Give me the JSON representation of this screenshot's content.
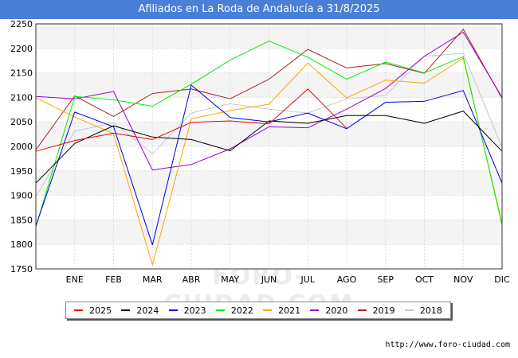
{
  "header": {
    "title": "Afiliados en La Roda de Andalucía a 31/8/2025"
  },
  "footer": {
    "url": "http://www.foro-ciudad.com"
  },
  "watermark": {
    "text": "FORO-CIUDAD.COM"
  },
  "chart_data": {
    "type": "line",
    "title": "Afiliados en La Roda de Andalucía a 31/8/2025",
    "xlabel": "",
    "ylabel": "",
    "categories": [
      "",
      "ENE",
      "FEB",
      "MAR",
      "ABR",
      "MAY",
      "JUN",
      "JUL",
      "AGO",
      "SEP",
      "OCT",
      "NOV",
      "DIC"
    ],
    "ylim": [
      1750,
      2250
    ],
    "yticks": [
      1750,
      1800,
      1850,
      1900,
      1950,
      2000,
      2050,
      2100,
      2150,
      2200,
      2250
    ],
    "grid": true,
    "legend_position": "bottom",
    "series": [
      {
        "name": "2025",
        "color": "#ee0000",
        "values": [
          1990,
          2012,
          2027,
          2014,
          2049,
          2052,
          2046,
          2117,
          2037,
          null,
          null,
          null,
          null
        ]
      },
      {
        "name": "2024",
        "color": "#000000",
        "values": [
          1925,
          2006,
          2042,
          2019,
          2014,
          1991,
          2052,
          2047,
          2063,
          2063,
          2047,
          2072,
          1990
        ]
      },
      {
        "name": "2023",
        "color": "#0000dd",
        "values": [
          1838,
          2070,
          2040,
          1799,
          2125,
          2059,
          2050,
          2068,
          2036,
          2090,
          2092,
          2114,
          1925
        ]
      },
      {
        "name": "2022",
        "color": "#00ee00",
        "values": [
          1836,
          2102,
          2095,
          2082,
          2127,
          2176,
          2215,
          2182,
          2137,
          2172,
          2150,
          2183,
          1839
        ]
      },
      {
        "name": "2021",
        "color": "#ffa500",
        "values": [
          2099,
          2060,
          2026,
          1758,
          2056,
          2073,
          2086,
          2170,
          2099,
          2135,
          2129,
          2180,
          1843
        ]
      },
      {
        "name": "2020",
        "color": "#9900cc",
        "values": [
          2102,
          2097,
          2112,
          1952,
          1963,
          1995,
          2040,
          2038,
          2076,
          2118,
          2184,
          2233,
          2100
        ]
      },
      {
        "name": "2019",
        "color": "#aa2222",
        "values": [
          1993,
          2103,
          2061,
          2108,
          2117,
          2097,
          2137,
          2198,
          2160,
          2169,
          2149,
          2239,
          2098
        ]
      },
      {
        "name": "2018",
        "color": "#c8c8c8",
        "values": [
          1897,
          2031,
          2048,
          1985,
          2068,
          2087,
          2076,
          2068,
          2097,
          2104,
          2184,
          2190,
          1998
        ]
      }
    ]
  }
}
